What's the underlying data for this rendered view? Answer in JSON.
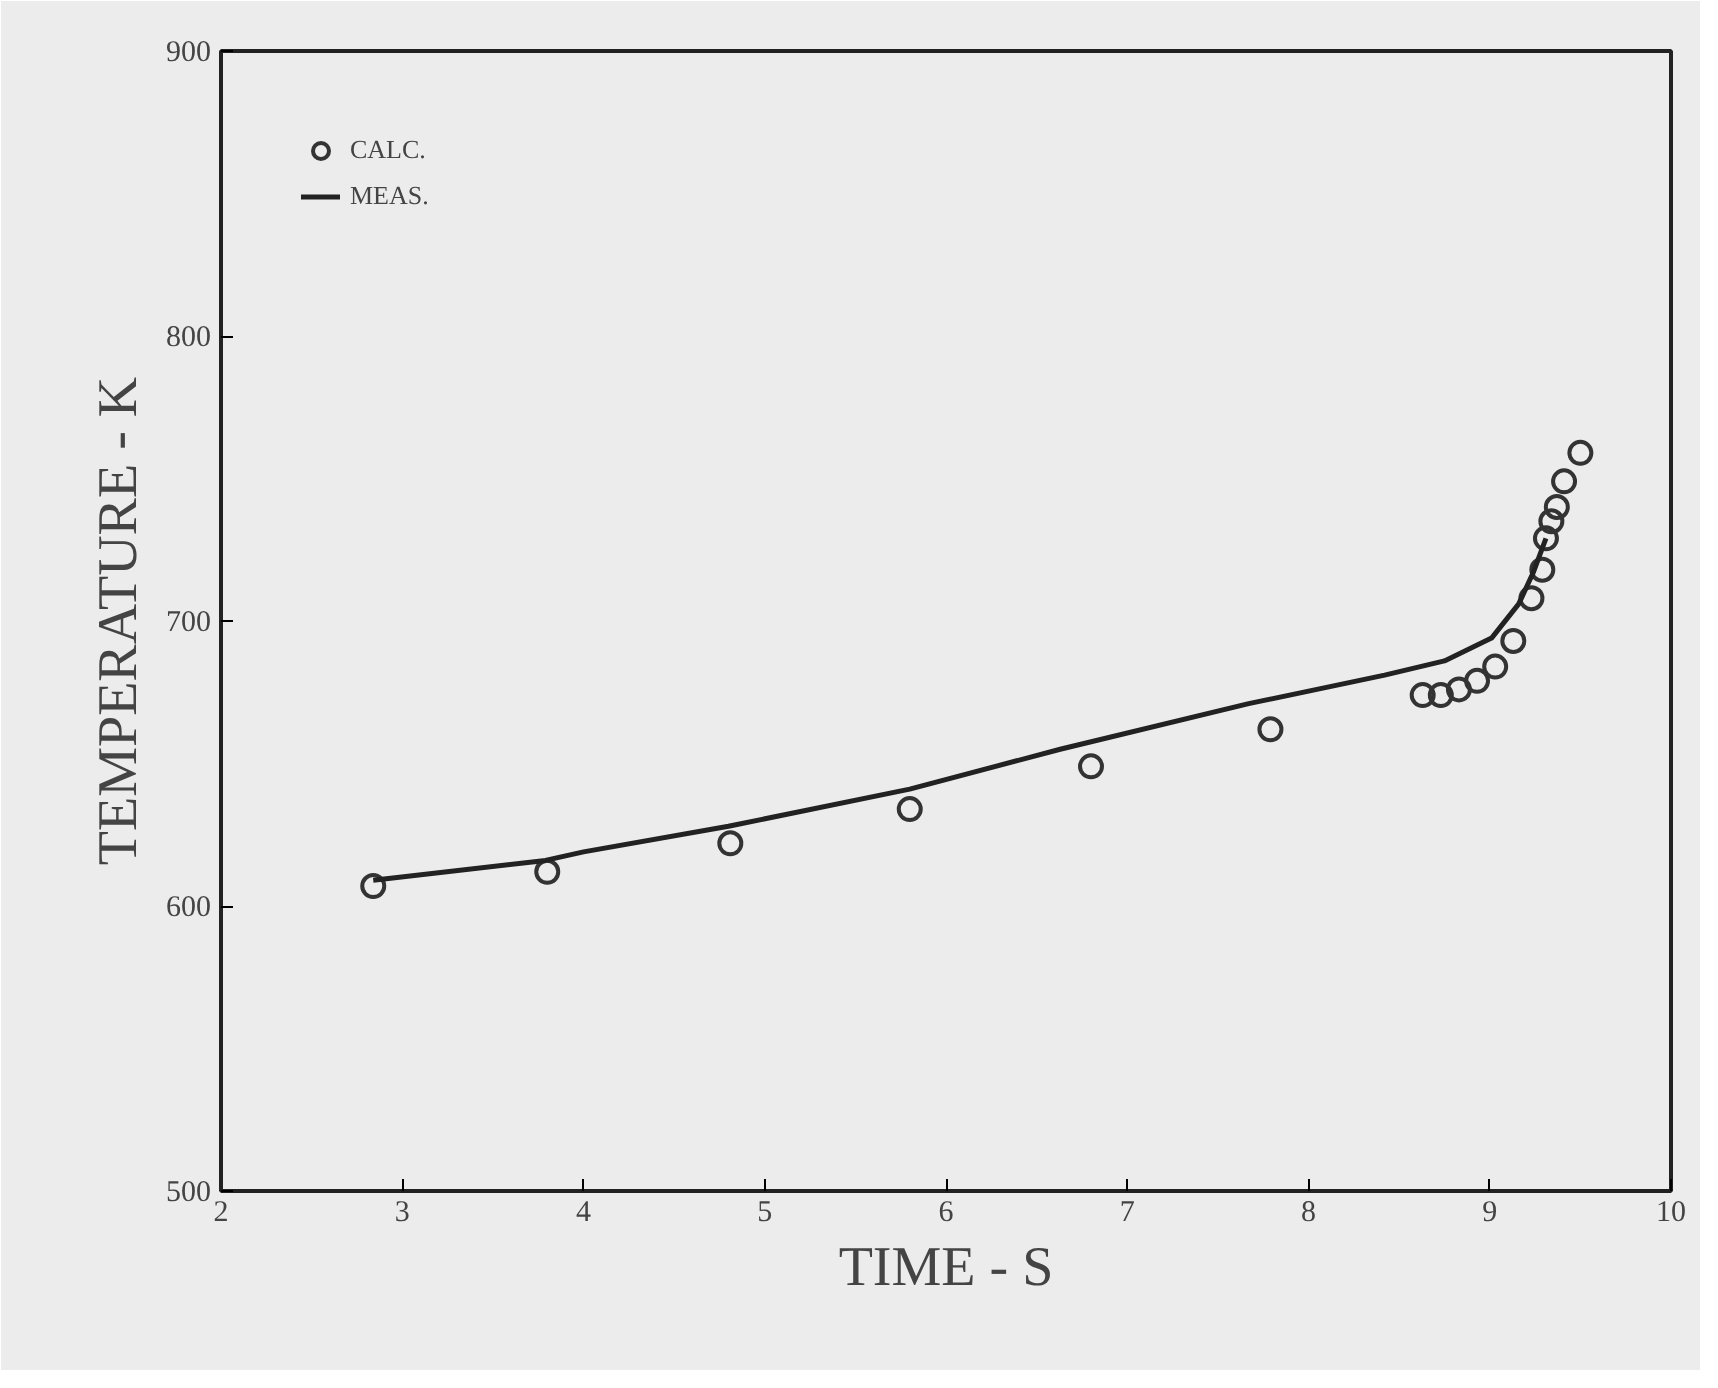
{
  "chart_data": {
    "type": "scatter",
    "xlabel": "TIME - S",
    "ylabel": "TEMPERATURE - K",
    "xlim": [
      2,
      10
    ],
    "ylim": [
      500,
      900
    ],
    "xticks": [
      2,
      3,
      4,
      5,
      6,
      7,
      8,
      9,
      10
    ],
    "yticks": [
      500,
      600,
      700,
      800,
      900
    ],
    "grid": false,
    "legend": "top left",
    "series": [
      {
        "name": "CALC.",
        "marker": "circle",
        "color": "#333333",
        "x": [
          2.84,
          3.8,
          4.81,
          5.8,
          6.8,
          7.79,
          8.63,
          8.73,
          8.83,
          8.93,
          9.03,
          9.13,
          9.23,
          9.29,
          9.31,
          9.34,
          9.37,
          9.41,
          9.5
        ],
        "values": [
          607,
          612,
          622,
          634,
          649,
          662,
          674,
          674,
          676,
          679,
          684,
          693,
          708,
          718,
          729,
          735,
          740,
          749,
          759
        ]
      },
      {
        "name": "MEAS.",
        "type": "line",
        "line_style": "solid",
        "color": "#222222",
        "x": [
          2.84,
          3.79,
          4.0,
          4.8,
          5.8,
          6.63,
          7.67,
          8.42,
          8.75,
          9.01,
          9.16,
          9.24,
          9.31
        ],
        "values": [
          609,
          616,
          619,
          628,
          641,
          655,
          671,
          681,
          686,
          694,
          706,
          717,
          729
        ]
      }
    ]
  }
}
